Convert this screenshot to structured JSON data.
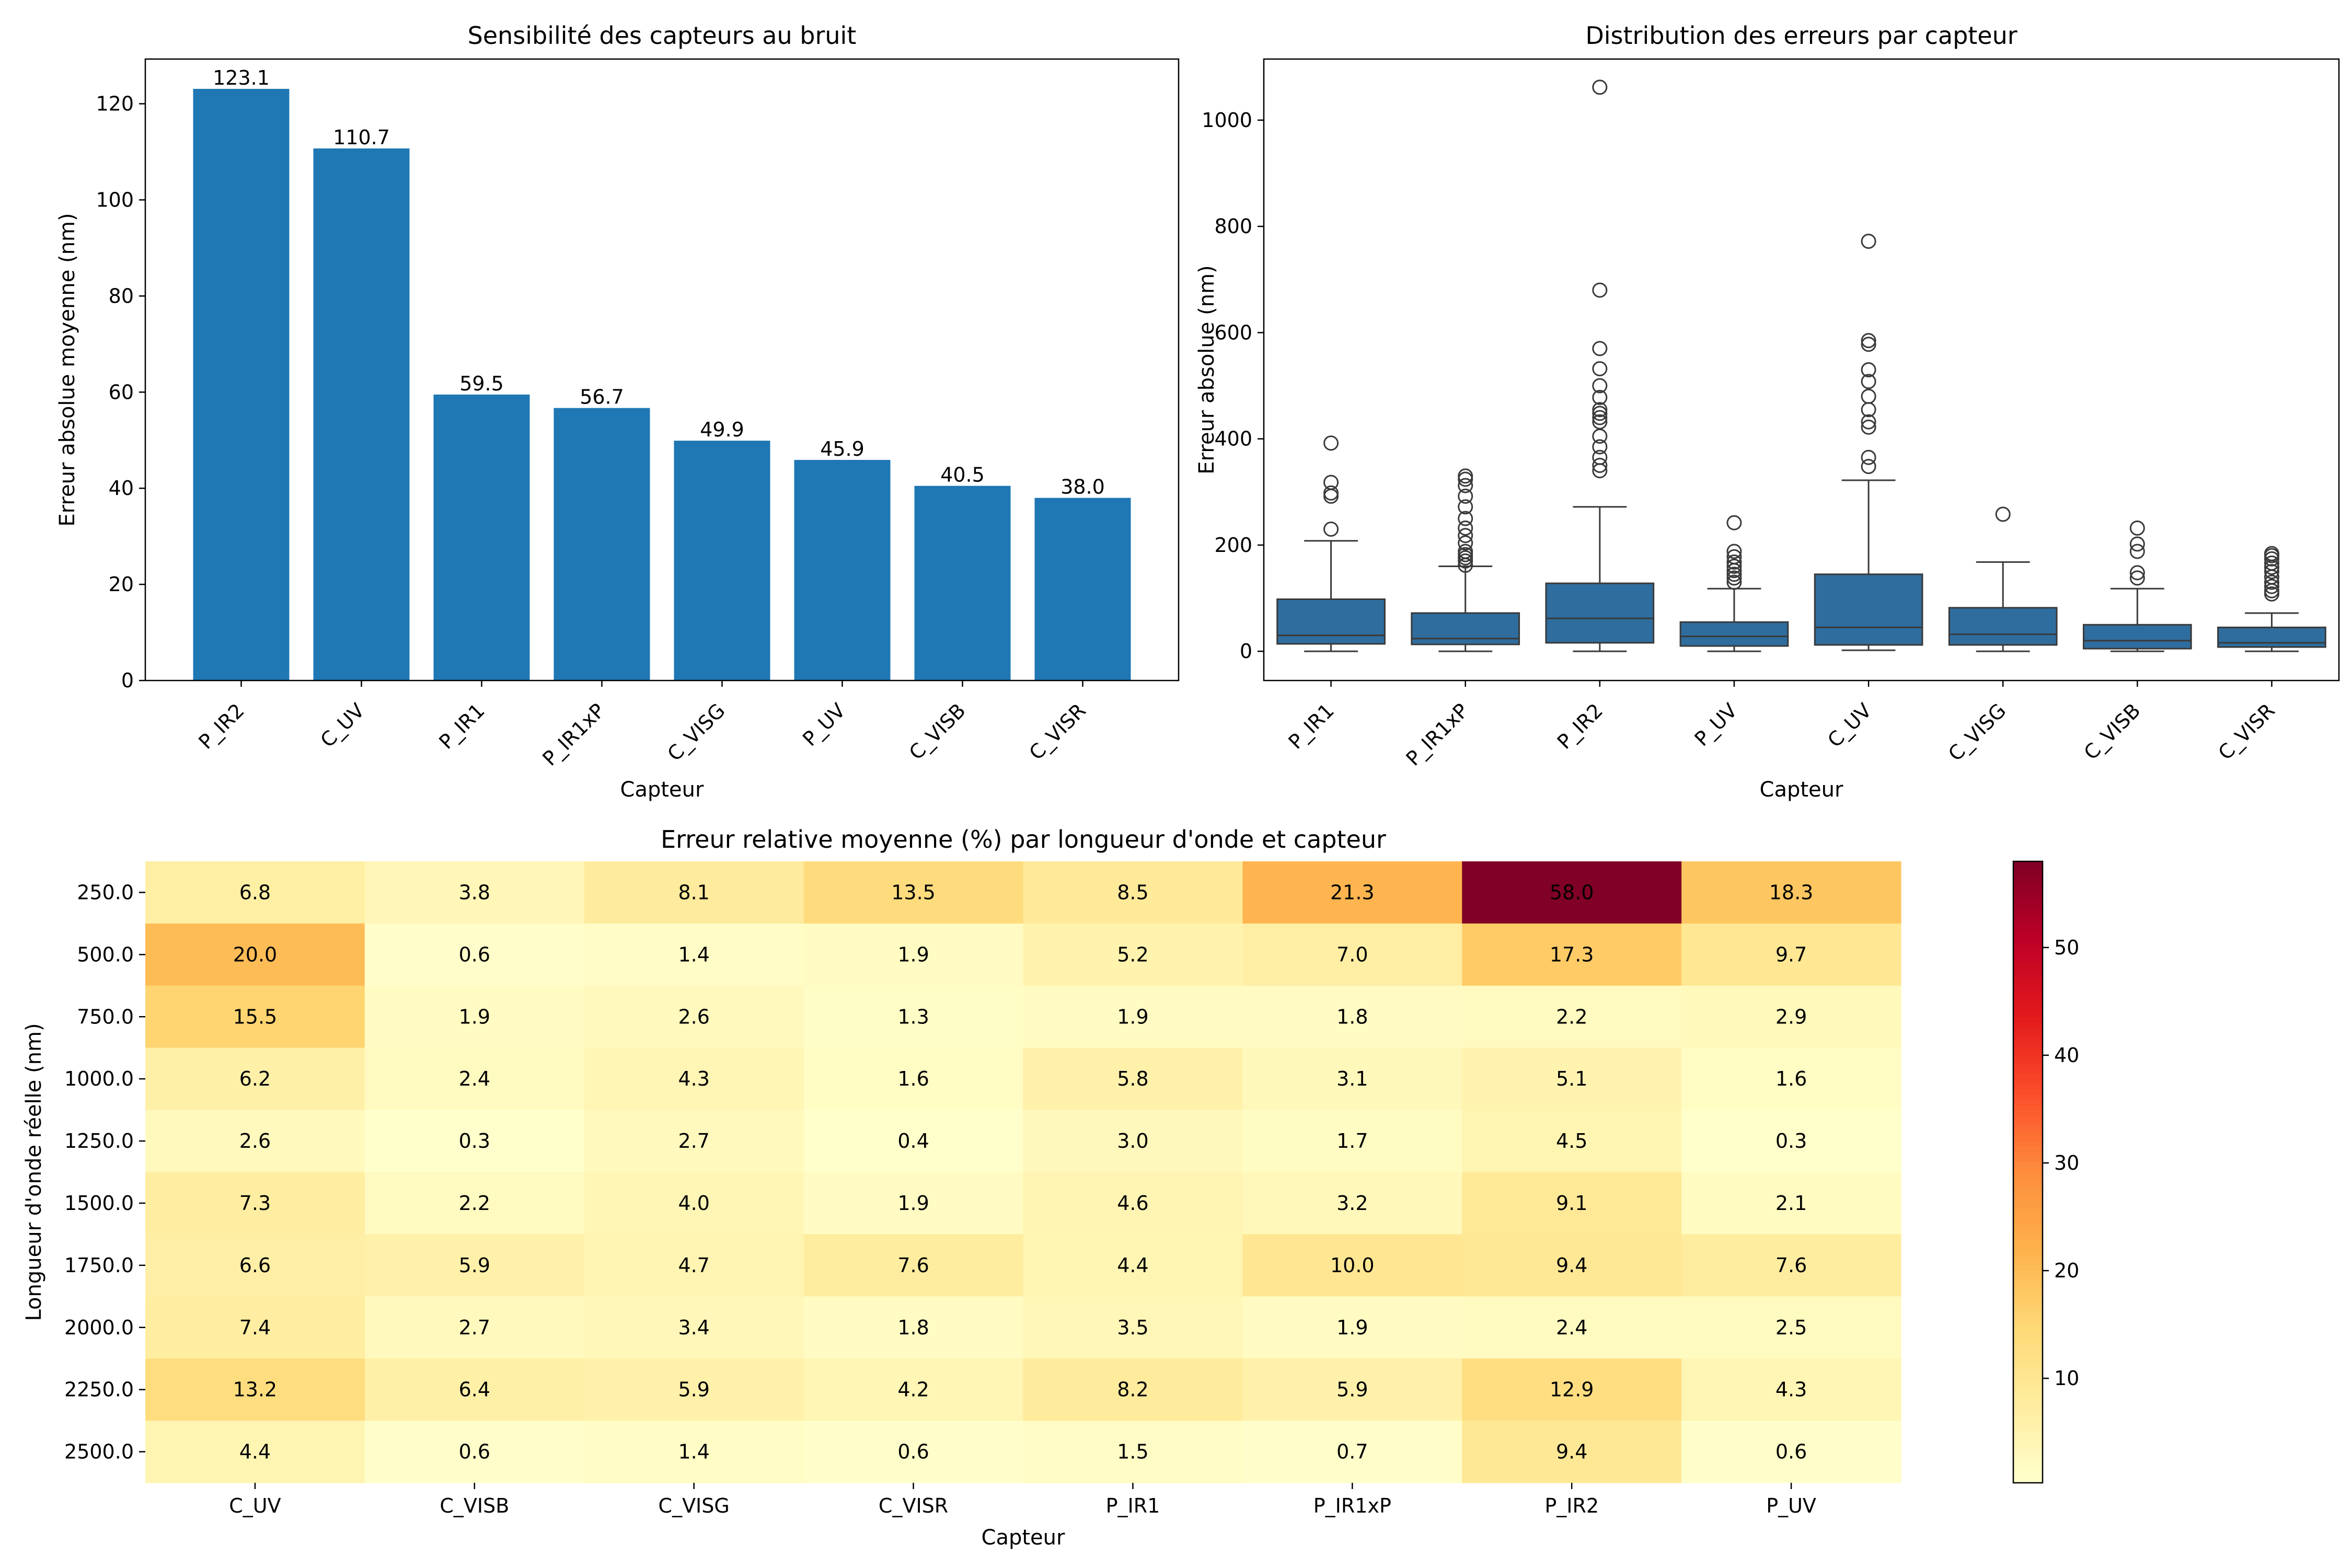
{
  "chart_data": [
    {
      "type": "bar",
      "title": "Sensibilité des capteurs au bruit",
      "xlabel": "Capteur",
      "ylabel": "Erreur absolue moyenne (nm)",
      "categories": [
        "P_IR2",
        "C_UV",
        "P_IR1",
        "P_IR1xP",
        "C_VISG",
        "P_UV",
        "C_VISB",
        "C_VISR"
      ],
      "values": [
        123.1,
        110.7,
        59.5,
        56.7,
        49.9,
        45.9,
        40.5,
        38.0
      ],
      "data_labels": [
        "123.1",
        "110.7",
        "59.5",
        "56.7",
        "49.9",
        "45.9",
        "40.5",
        "38.0"
      ],
      "ylim": [
        0,
        129.3
      ],
      "yticks": [
        0,
        20,
        40,
        60,
        80,
        100,
        120
      ],
      "grid": false,
      "color": "#1f77b4"
    },
    {
      "type": "box",
      "title": "Distribution des erreurs par capteur",
      "xlabel": "Capteur",
      "ylabel": "Erreur absolue (nm)",
      "categories": [
        "P_IR1",
        "P_IR1xP",
        "P_IR2",
        "P_UV",
        "C_UV",
        "C_VISG",
        "C_VISB",
        "C_VISR"
      ],
      "ylim": [
        -55,
        1115
      ],
      "yticks": [
        0,
        200,
        400,
        600,
        800,
        1000
      ],
      "grid": false,
      "color": "#2f6d9e",
      "boxes": [
        {
          "name": "P_IR1",
          "whisker_low": 0,
          "q1": 14,
          "median": 30,
          "q3": 98,
          "whisker_high": 208,
          "outliers": [
            230,
            292,
            298,
            318,
            392
          ]
        },
        {
          "name": "P_IR1xP",
          "whisker_low": 0,
          "q1": 13,
          "median": 24,
          "q3": 72,
          "whisker_high": 160,
          "outliers": [
            162,
            170,
            176,
            182,
            188,
            204,
            218,
            232,
            250,
            272,
            292,
            312,
            324,
            330
          ]
        },
        {
          "name": "P_IR2",
          "whisker_low": 0,
          "q1": 16,
          "median": 62,
          "q3": 128,
          "whisker_high": 272,
          "outliers": [
            340,
            350,
            365,
            385,
            405,
            432,
            440,
            448,
            455,
            478,
            500,
            532,
            570,
            680,
            1062
          ]
        },
        {
          "name": "P_UV",
          "whisker_low": 0,
          "q1": 10,
          "median": 28,
          "q3": 55,
          "whisker_high": 118,
          "outliers": [
            130,
            138,
            145,
            152,
            160,
            168,
            178,
            188,
            242
          ]
        },
        {
          "name": "C_UV",
          "whisker_low": 2,
          "q1": 12,
          "median": 45,
          "q3": 145,
          "whisker_high": 322,
          "outliers": [
            348,
            365,
            422,
            432,
            455,
            480,
            508,
            530,
            578,
            585,
            772
          ]
        },
        {
          "name": "C_VISG",
          "whisker_low": 0,
          "q1": 12,
          "median": 32,
          "q3": 82,
          "whisker_high": 168,
          "outliers": [
            258
          ]
        },
        {
          "name": "C_VISB",
          "whisker_low": 0,
          "q1": 5,
          "median": 20,
          "q3": 50,
          "whisker_high": 118,
          "outliers": [
            138,
            148,
            188,
            202,
            232
          ]
        },
        {
          "name": "C_VISR",
          "whisker_low": 0,
          "q1": 8,
          "median": 16,
          "q3": 45,
          "whisker_high": 72,
          "outliers": [
            108,
            114,
            122,
            130,
            140,
            150,
            158,
            166,
            174,
            180,
            184
          ]
        }
      ]
    },
    {
      "type": "heatmap",
      "title": "Erreur relative moyenne (%) par longueur d'onde et capteur",
      "xlabel": "Capteur",
      "ylabel": "Longueur d'onde réelle (nm)",
      "x": [
        "C_UV",
        "C_VISB",
        "C_VISG",
        "C_VISR",
        "P_IR1",
        "P_IR1xP",
        "P_IR2",
        "P_UV"
      ],
      "y": [
        "250.0",
        "500.0",
        "750.0",
        "1000.0",
        "1250.0",
        "1500.0",
        "1750.0",
        "2000.0",
        "2250.0",
        "2500.0"
      ],
      "values": [
        [
          6.8,
          3.8,
          8.1,
          13.5,
          8.5,
          21.3,
          58.0,
          18.3
        ],
        [
          20.0,
          0.6,
          1.4,
          1.9,
          5.2,
          7.0,
          17.3,
          9.7
        ],
        [
          15.5,
          1.9,
          2.6,
          1.3,
          1.9,
          1.8,
          2.2,
          2.9
        ],
        [
          6.2,
          2.4,
          4.3,
          1.6,
          5.8,
          3.1,
          5.1,
          1.6
        ],
        [
          2.6,
          0.3,
          2.7,
          0.4,
          3.0,
          1.7,
          4.5,
          0.3
        ],
        [
          7.3,
          2.2,
          4.0,
          1.9,
          4.6,
          3.2,
          9.1,
          2.1
        ],
        [
          6.6,
          5.9,
          4.7,
          7.6,
          4.4,
          10.0,
          9.4,
          7.6
        ],
        [
          7.4,
          2.7,
          3.4,
          1.8,
          3.5,
          1.9,
          2.4,
          2.5
        ],
        [
          13.2,
          6.4,
          5.9,
          4.2,
          8.2,
          5.9,
          12.9,
          4.3
        ],
        [
          4.4,
          0.6,
          1.4,
          0.6,
          1.5,
          0.7,
          9.4,
          0.6
        ]
      ],
      "value_labels": [
        [
          "6.8",
          "3.8",
          "8.1",
          "13.5",
          "8.5",
          "21.3",
          "58.0",
          "18.3"
        ],
        [
          "20.0",
          "0.6",
          "1.4",
          "1.9",
          "5.2",
          "7.0",
          "17.3",
          "9.7"
        ],
        [
          "15.5",
          "1.9",
          "2.6",
          "1.3",
          "1.9",
          "1.8",
          "2.2",
          "2.9"
        ],
        [
          "6.2",
          "2.4",
          "4.3",
          "1.6",
          "5.8",
          "3.1",
          "5.1",
          "1.6"
        ],
        [
          "2.6",
          "0.3",
          "2.7",
          "0.4",
          "3.0",
          "1.7",
          "4.5",
          "0.3"
        ],
        [
          "7.3",
          "2.2",
          "4.0",
          "1.9",
          "4.6",
          "3.2",
          "9.1",
          "2.1"
        ],
        [
          "6.6",
          "5.9",
          "4.7",
          "7.6",
          "4.4",
          "10.0",
          "9.4",
          "7.6"
        ],
        [
          "7.4",
          "2.7",
          "3.4",
          "1.8",
          "3.5",
          "1.9",
          "2.4",
          "2.5"
        ],
        [
          "13.2",
          "6.4",
          "5.9",
          "4.2",
          "8.2",
          "5.9",
          "12.9",
          "4.3"
        ],
        [
          "4.4",
          "0.6",
          "1.4",
          "0.6",
          "1.5",
          "0.7",
          "9.4",
          "0.6"
        ]
      ],
      "colormap": "YlOrRd",
      "colorbar_range": [
        0.3,
        58.0
      ],
      "colorbar_ticks": [
        10,
        20,
        30,
        40,
        50
      ]
    }
  ]
}
